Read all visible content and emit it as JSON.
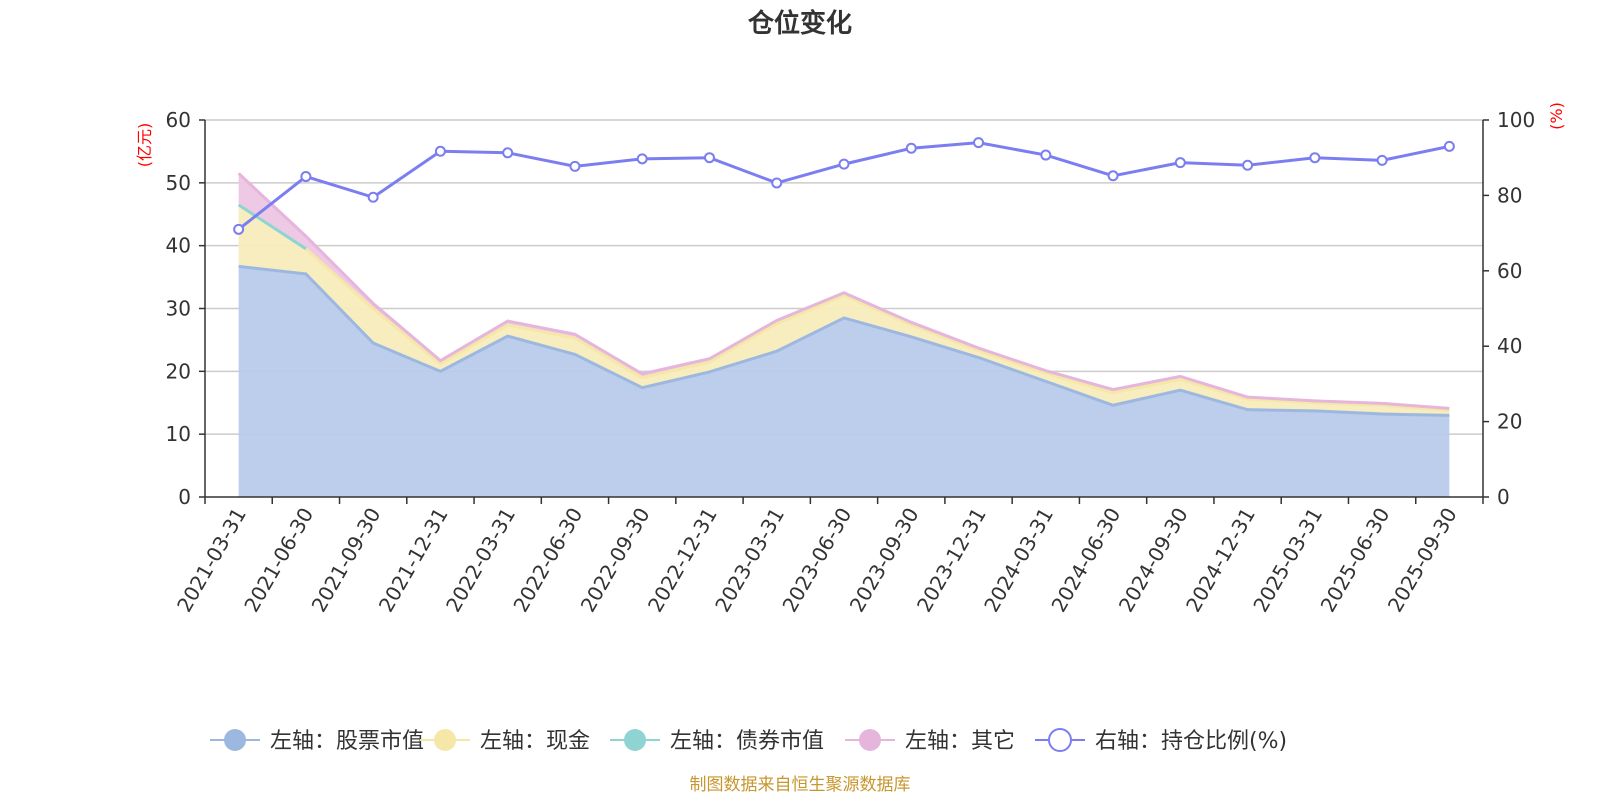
{
  "chart_data": {
    "type": "area",
    "title": "仓位变化",
    "categories": [
      "2021-03-31",
      "2021-06-30",
      "2021-09-30",
      "2021-12-31",
      "2022-03-31",
      "2022-06-30",
      "2022-09-30",
      "2022-12-31",
      "2023-03-31",
      "2023-06-30",
      "2023-09-30",
      "2023-12-31",
      "2024-03-31",
      "2024-06-30",
      "2024-09-30",
      "2024-12-31",
      "2025-03-31",
      "2025-06-30",
      "2025-09-30"
    ],
    "left_axis": {
      "unit": "(亿元)",
      "ylim": [
        0,
        60
      ],
      "ticks": [
        "0",
        "10",
        "20",
        "30",
        "40",
        "50",
        "60"
      ]
    },
    "right_axis": {
      "unit": "(%)",
      "ylim": [
        0,
        100
      ],
      "ticks": [
        "0",
        "20",
        "40",
        "60",
        "80",
        "100"
      ]
    },
    "series": [
      {
        "name": "左轴：股票市值",
        "axis": "left",
        "stack": true,
        "color": "#9db8e0",
        "fill": "#b8cbea",
        "values": [
          36.7,
          35.5,
          24.5,
          20.0,
          25.6,
          22.7,
          17.4,
          19.9,
          23.2,
          28.5,
          25.5,
          22.2,
          18.4,
          14.6,
          17.0,
          13.9,
          13.7,
          13.2,
          13.0
        ]
      },
      {
        "name": "左轴：现金",
        "axis": "left",
        "stack": true,
        "color": "#f5e7a8",
        "fill": "#f7ecbb",
        "values": [
          9.8,
          4.0,
          5.5,
          1.2,
          1.8,
          2.6,
          1.6,
          1.6,
          4.4,
          3.6,
          1.9,
          1.1,
          1.3,
          2.0,
          1.7,
          1.7,
          1.3,
          1.4,
          0.8
        ]
      },
      {
        "name": "左轴：债券市值",
        "axis": "left",
        "stack": true,
        "color": "#90d3d3",
        "fill": "#a6dcdc",
        "values": [
          0,
          0,
          null,
          null,
          null,
          null,
          null,
          null,
          null,
          null,
          null,
          null,
          null,
          null,
          null,
          null,
          null,
          null,
          null
        ]
      },
      {
        "name": "左轴：其它",
        "axis": "left",
        "stack": true,
        "color": "#e6b5dc",
        "fill": "#ecc6e4",
        "values": [
          5.0,
          2.0,
          0.8,
          0.5,
          0.6,
          0.6,
          0.6,
          0.5,
          0.5,
          0.4,
          0.4,
          0.4,
          0.4,
          0.5,
          0.5,
          0.3,
          0.3,
          0.3,
          0.3
        ]
      },
      {
        "name": "右轴：持仓比例(%)",
        "axis": "right",
        "type": "line",
        "color": "#7b7ef0",
        "values": [
          71.0,
          85.0,
          79.5,
          91.7,
          91.3,
          87.7,
          89.7,
          90.0,
          83.3,
          88.3,
          92.5,
          94.0,
          90.7,
          85.2,
          88.7,
          88.0,
          90.0,
          89.3,
          93.0
        ]
      }
    ]
  },
  "source_note": "制图数据来自恒生聚源数据库"
}
